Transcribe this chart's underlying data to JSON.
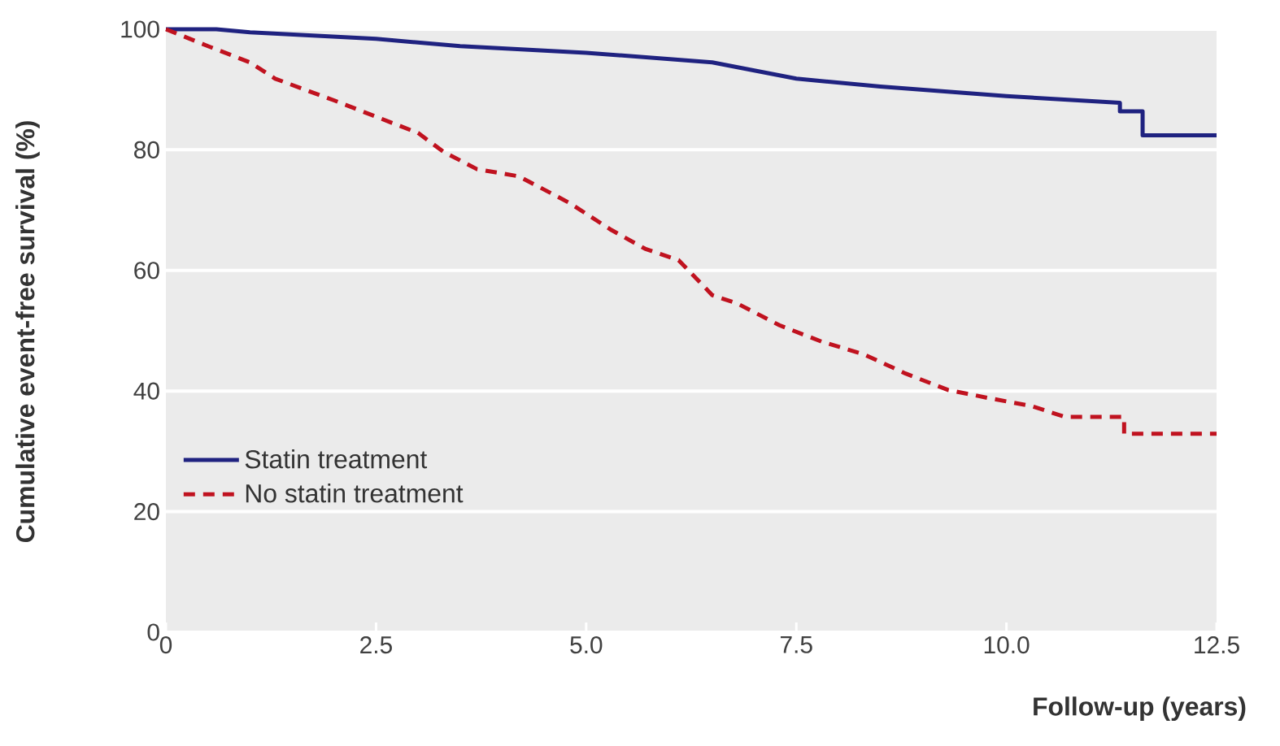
{
  "chart_data": {
    "type": "line",
    "xlabel": "Follow-up (years)",
    "ylabel": "Cumulative event-free survival (%)",
    "xlim": [
      0,
      12.5
    ],
    "ylim": [
      0,
      100
    ],
    "xticks": [
      0,
      2.5,
      {
        "value": 5,
        "label": "5.0"
      },
      {
        "value": 7.5,
        "label": "7.5"
      },
      {
        "value": 10,
        "label": "10.0"
      },
      12.5
    ],
    "yticks": [
      0,
      20,
      40,
      60,
      80,
      100
    ],
    "grid": "y",
    "legend": "bottom left",
    "series": [
      {
        "name": "Statin treatment",
        "color": "#1f2280",
        "line_style": "solid",
        "x": [
          0,
          0.6,
          1.0,
          2.5,
          3.5,
          5.0,
          6.5,
          7.5,
          8.5,
          10.0,
          11.35,
          11.35,
          11.62,
          11.62,
          12.5
        ],
        "values": [
          100,
          100,
          99.5,
          98.4,
          97.2,
          96.1,
          94.5,
          91.8,
          90.5,
          88.9,
          87.8,
          86.4,
          86.4,
          82.4,
          82.4
        ]
      },
      {
        "name": "No statin treatment",
        "color": "#c0121f",
        "line_style": "dashed",
        "x": [
          0,
          0.5,
          1.0,
          1.3,
          2.0,
          2.5,
          3.0,
          3.3,
          3.7,
          4.2,
          4.8,
          5.3,
          5.7,
          6.1,
          6.5,
          6.8,
          7.3,
          7.8,
          8.3,
          8.8,
          9.3,
          9.8,
          10.3,
          10.7,
          11.4,
          11.4,
          12.5
        ],
        "values": [
          100,
          97.2,
          94.5,
          91.8,
          88.2,
          85.5,
          82.8,
          79.7,
          76.8,
          75.6,
          71.2,
          66.7,
          63.6,
          61.7,
          55.9,
          54.5,
          50.9,
          48.2,
          46.1,
          42.9,
          40.2,
          38.8,
          37.5,
          35.7,
          35.7,
          32.9,
          32.9
        ]
      }
    ]
  }
}
